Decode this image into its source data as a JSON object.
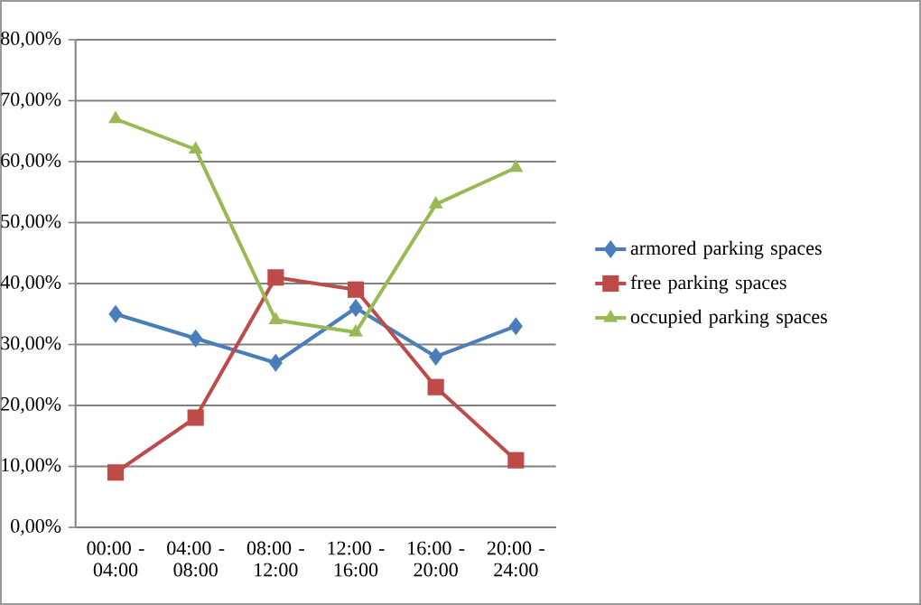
{
  "chart_data": {
    "type": "line",
    "categories": [
      "00:00 - 04:00",
      "04:00 - 08:00",
      "08:00 - 12:00",
      "12:00 - 16:00",
      "16:00 - 20:00",
      "20:00 - 24:00"
    ],
    "series": [
      {
        "name": "armored parking spaces",
        "color": "#4a7ebb",
        "marker": "diamond",
        "values": [
          35,
          31,
          27,
          36,
          28,
          33
        ]
      },
      {
        "name": "free parking spaces",
        "color": "#be4b48",
        "marker": "square",
        "values": [
          9,
          18,
          41,
          39,
          23,
          11
        ]
      },
      {
        "name": "occupied parking spaces",
        "color": "#98b954",
        "marker": "triangle",
        "values": [
          67,
          62,
          34,
          32,
          53,
          59
        ]
      }
    ],
    "ylim": [
      0,
      80
    ],
    "yticks": [
      {
        "value": 0,
        "label": "0,00%"
      },
      {
        "value": 10,
        "label": "10,00%"
      },
      {
        "value": 20,
        "label": "20,00%"
      },
      {
        "value": 30,
        "label": "30,00%"
      },
      {
        "value": 40,
        "label": "40,00%"
      },
      {
        "value": 50,
        "label": "50,00%"
      },
      {
        "value": 60,
        "label": "60,00%"
      },
      {
        "value": 70,
        "label": "70,00%"
      },
      {
        "value": 80,
        "label": "80,00%"
      }
    ],
    "grid": "y",
    "legend": "right",
    "line_style": "solid"
  }
}
